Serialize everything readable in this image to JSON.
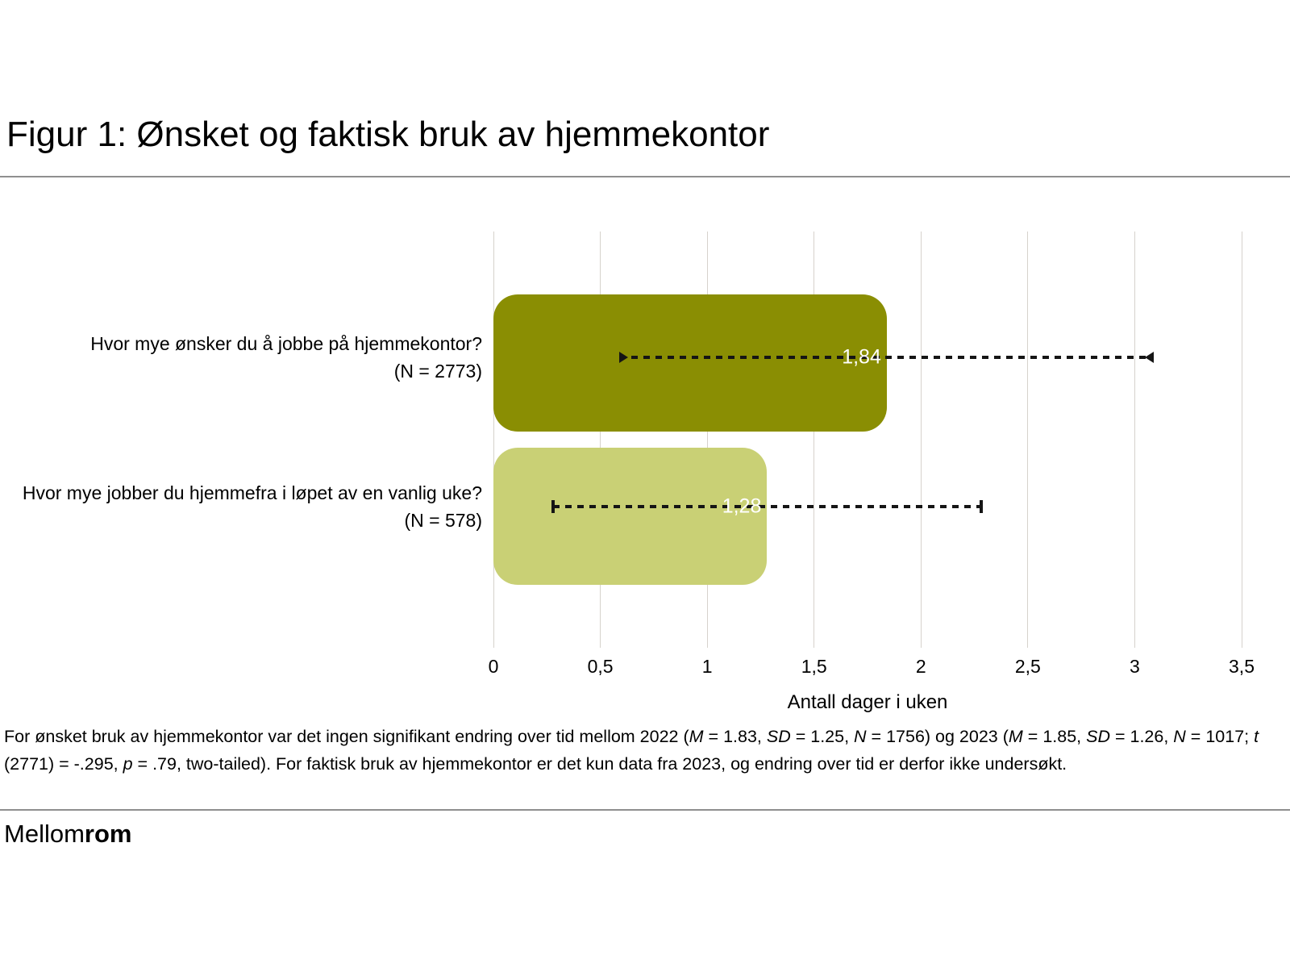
{
  "title": "Figur 1: Ønsket og faktisk bruk av hjemmekontor",
  "logo": {
    "regular": "Mellom",
    "bold": "rom"
  },
  "footnote": {
    "segments": [
      {
        "text": "For ønsket bruk av hjemmekontor var det ingen signifikant endring over tid mellom 2022 (",
        "italic": false
      },
      {
        "text": "M",
        "italic": true
      },
      {
        "text": " = 1.83, ",
        "italic": false
      },
      {
        "text": "SD",
        "italic": true
      },
      {
        "text": " = 1.25, ",
        "italic": false
      },
      {
        "text": "N",
        "italic": true
      },
      {
        "text": " = 1756) og 2023 (",
        "italic": false
      },
      {
        "text": "M",
        "italic": true
      },
      {
        "text": " = 1.85, ",
        "italic": false
      },
      {
        "text": "SD",
        "italic": true
      },
      {
        "text": " = 1.26, ",
        "italic": false
      },
      {
        "text": "N",
        "italic": true
      },
      {
        "text": " = 1017; ",
        "italic": false
      },
      {
        "text": "t",
        "italic": true
      },
      {
        "text": " (2771) = -.295, ",
        "italic": false
      },
      {
        "text": "p",
        "italic": true
      },
      {
        "text": " = .79, two-tailed). For faktisk bruk av hjemmekontor er det kun data fra 2023, og endring over tid er derfor ikke undersøkt.",
        "italic": false
      }
    ]
  },
  "chart_data": {
    "type": "bar",
    "orientation": "horizontal",
    "title": "Figur 1: Ønsket og faktisk bruk av hjemmekontor",
    "categories": [
      {
        "label": "Hvor mye ønsker du å jobbe på hjemmekontor?",
        "sublabel": "(N = 2773)"
      },
      {
        "label": "Hvor mye jobber du hjemmefra i løpet av en vanlig uke?",
        "sublabel": "(N = 578)"
      }
    ],
    "values": [
      1.84,
      1.28
    ],
    "value_labels": [
      "1,84",
      "1,28"
    ],
    "error_bars": [
      {
        "low": 0.59,
        "high": 3.09,
        "cap": "arrow"
      },
      {
        "low": 0.28,
        "high": 2.28,
        "cap": "tick"
      }
    ],
    "bar_colors": [
      "#8a8e03",
      "#c9d075"
    ],
    "value_label_color": "#ffffff",
    "xlabel": "Antall dager i uken",
    "xlim": [
      0,
      3.5
    ],
    "xticks": [
      {
        "value": 0,
        "label": "0"
      },
      {
        "value": 0.5,
        "label": "0,5"
      },
      {
        "value": 1,
        "label": "1"
      },
      {
        "value": 1.5,
        "label": "1,5"
      },
      {
        "value": 2,
        "label": "2"
      },
      {
        "value": 2.5,
        "label": "2,5"
      },
      {
        "value": 3,
        "label": "3"
      },
      {
        "value": 3.5,
        "label": "3,5"
      }
    ],
    "grid": "vertical",
    "legend": "none"
  }
}
